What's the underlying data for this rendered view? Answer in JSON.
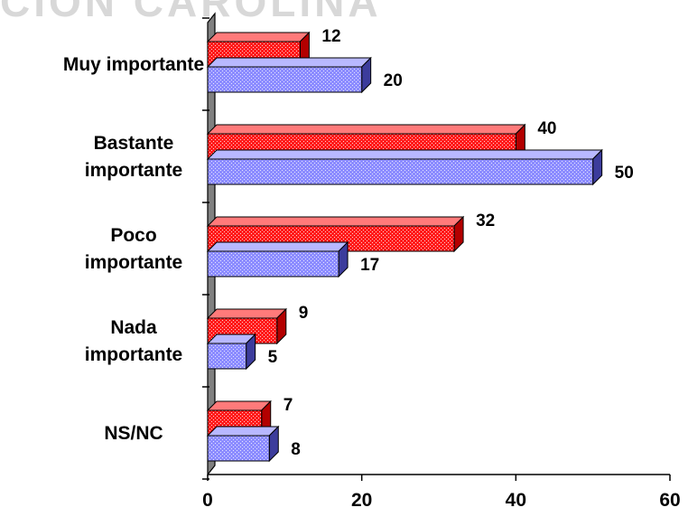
{
  "header_text": "CION CAROLINA",
  "chart_data": {
    "type": "bar",
    "orientation": "horizontal",
    "title": "",
    "xlabel": "",
    "ylabel": "",
    "categories": [
      [
        "Muy importante"
      ],
      [
        "Bastante",
        "importante"
      ],
      [
        "Poco",
        "importante"
      ],
      [
        "Nada",
        "importante"
      ],
      [
        "NS/NC"
      ]
    ],
    "series": [
      {
        "values": [
          12,
          40,
          32,
          9,
          7
        ],
        "color": "#ff1a1a",
        "pattern": "dotted"
      },
      {
        "values": [
          20,
          50,
          17,
          5,
          8
        ],
        "color": "#8c8cff",
        "pattern": "dotted"
      }
    ],
    "xlim": [
      0,
      60
    ],
    "xticks": [
      0,
      20,
      40,
      60
    ],
    "tick_labels": [
      "0",
      "20",
      "40",
      "60"
    ],
    "grid": false,
    "legend": "none",
    "style": "3d"
  }
}
